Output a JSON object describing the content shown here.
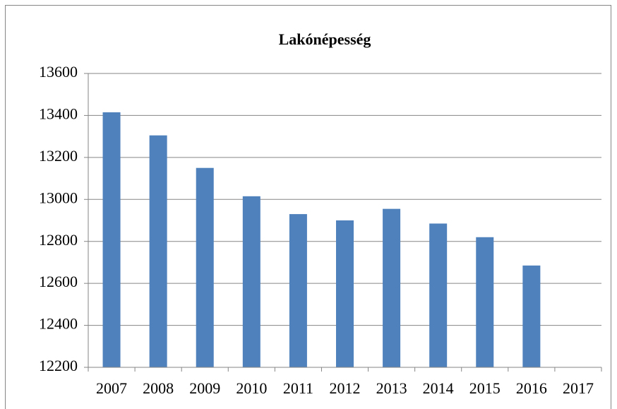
{
  "chart_data": {
    "type": "bar",
    "title": "Lakónépesség",
    "categories": [
      "2007",
      "2008",
      "2009",
      "2010",
      "2011",
      "2012",
      "2013",
      "2014",
      "2015",
      "2016",
      "2017"
    ],
    "values": [
      13415,
      13305,
      13150,
      13015,
      12930,
      12900,
      12955,
      12885,
      12820,
      12685,
      null
    ],
    "color": "#4f81bd",
    "ylim": [
      12200,
      13600
    ],
    "yticks": [
      12200,
      12400,
      12600,
      12800,
      13000,
      13200,
      13400,
      13600
    ],
    "grid": true
  }
}
